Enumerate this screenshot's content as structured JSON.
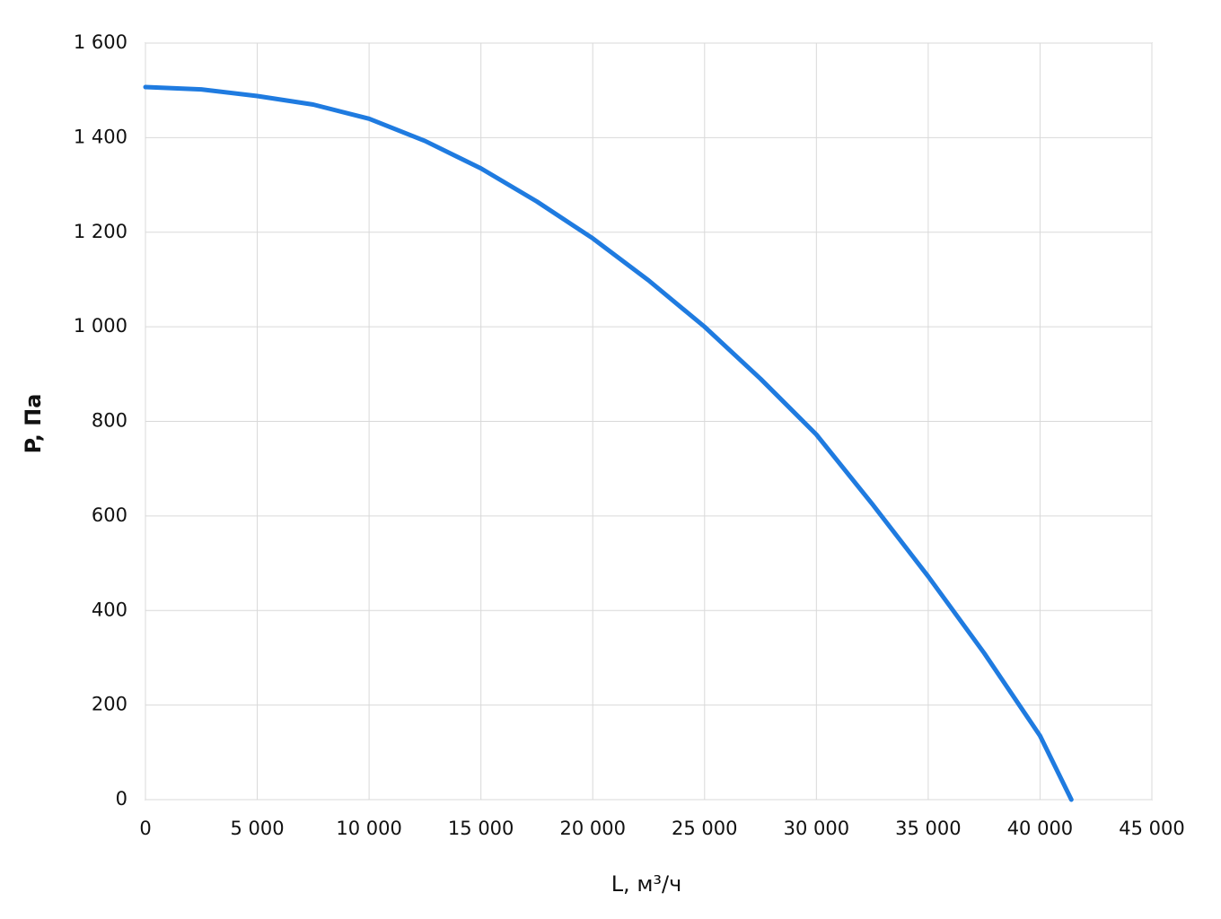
{
  "chart_data": {
    "type": "line",
    "xlabel": "L, м³/ч",
    "ylabel": "P, Па",
    "x": [
      0,
      2500,
      5000,
      7500,
      10000,
      12500,
      15000,
      17500,
      20000,
      22500,
      25000,
      27500,
      30000,
      32500,
      35000,
      37500,
      40000,
      41400
    ],
    "series": [
      {
        "name": "P",
        "color": "#1f7be0",
        "values": [
          1507,
          1502,
          1488,
          1470,
          1440,
          1393,
          1335,
          1265,
          1187,
          1098,
          1000,
          890,
          772,
          625,
          472,
          310,
          135,
          0
        ]
      }
    ],
    "xlim": [
      0,
      45000
    ],
    "xticks": [
      0,
      {
        "value": 5000,
        "label": "5 000"
      },
      {
        "value": 10000,
        "label": "10 000"
      },
      {
        "value": 15000,
        "label": "15 000"
      },
      {
        "value": 20000,
        "label": "20 000"
      },
      {
        "value": 25000,
        "label": "25 000"
      },
      {
        "value": 30000,
        "label": "30 000"
      },
      {
        "value": 35000,
        "label": "35 000"
      },
      {
        "value": 40000,
        "label": "40 000"
      },
      {
        "value": 45000,
        "label": "45 000"
      }
    ],
    "ylim": [
      0,
      1600
    ],
    "yticks": [
      0,
      200,
      400,
      600,
      800,
      {
        "value": 1000,
        "label": "1 000"
      },
      {
        "value": 1200,
        "label": "1 200"
      },
      {
        "value": 1400,
        "label": "1 400"
      },
      {
        "value": 1600,
        "label": "1 600"
      }
    ],
    "grid": true
  }
}
